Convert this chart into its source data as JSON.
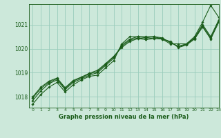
{
  "title": "Graphe pression niveau de la mer (hPa)",
  "background_color": "#cce8da",
  "grid_color": "#99ccbb",
  "line_color": "#1a5c1a",
  "xlim": [
    -0.5,
    23
  ],
  "ylim": [
    1017.55,
    1021.85
  ],
  "yticks": [
    1018,
    1019,
    1020,
    1021
  ],
  "xticks": [
    0,
    1,
    2,
    3,
    4,
    5,
    6,
    7,
    8,
    9,
    10,
    11,
    12,
    13,
    14,
    15,
    16,
    17,
    18,
    19,
    20,
    21,
    22,
    23
  ],
  "series": [
    [
      1017.7,
      1018.1,
      1018.4,
      1018.6,
      1018.2,
      1018.5,
      1018.7,
      1018.85,
      1018.9,
      1019.2,
      1019.5,
      1020.2,
      1020.5,
      1020.5,
      1020.5,
      1020.5,
      1020.4,
      1020.2,
      1020.2,
      1020.2,
      1020.5,
      1021.1,
      1021.8,
      1021.3
    ],
    [
      1017.85,
      1018.25,
      1018.55,
      1018.7,
      1018.3,
      1018.6,
      1018.75,
      1018.9,
      1019.0,
      1019.3,
      1019.6,
      1020.15,
      1020.4,
      1020.5,
      1020.45,
      1020.5,
      1020.45,
      1020.25,
      1020.1,
      1020.2,
      1020.45,
      1021.0,
      1020.5,
      1021.2
    ],
    [
      1017.95,
      1018.35,
      1018.6,
      1018.75,
      1018.35,
      1018.65,
      1018.8,
      1018.95,
      1019.05,
      1019.35,
      1019.65,
      1020.1,
      1020.35,
      1020.45,
      1020.4,
      1020.45,
      1020.42,
      1020.28,
      1020.08,
      1020.18,
      1020.42,
      1020.95,
      1020.45,
      1021.15
    ],
    [
      1018.0,
      1018.4,
      1018.65,
      1018.78,
      1018.38,
      1018.68,
      1018.82,
      1018.98,
      1019.1,
      1019.38,
      1019.68,
      1020.05,
      1020.3,
      1020.42,
      1020.38,
      1020.42,
      1020.4,
      1020.3,
      1020.05,
      1020.15,
      1020.4,
      1020.9,
      1020.4,
      1021.1
    ]
  ],
  "marker": "D",
  "markersize": 1.8,
  "linewidth": 0.8,
  "xlabel_fontsize": 6.0,
  "ytick_fontsize": 5.5,
  "xtick_fontsize": 4.5
}
